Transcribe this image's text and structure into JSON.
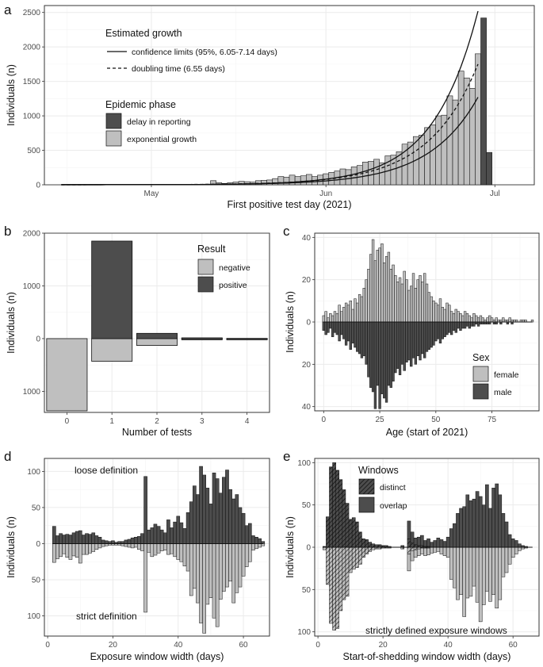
{
  "colors": {
    "dark": "#4d4d4d",
    "light": "#bfbfbf",
    "grid": "#ebebeb"
  },
  "chart_data": [
    {
      "panel": "a",
      "type": "bar",
      "xlabel": "First positive test day (2021)",
      "ylabel": "Individuals (n)",
      "x_ticks": [
        "May",
        "Jun",
        "Jul"
      ],
      "y_ticks": [
        "0",
        "500",
        "1000",
        "1500",
        "2000",
        "2500"
      ],
      "ylim": [
        0,
        2600
      ],
      "x_unit": "day index (0 = Apr 15)",
      "xlim": [
        -3,
        84
      ],
      "x_tick_days": [
        16,
        47,
        77
      ],
      "legend_growth_title": "Estimated growth",
      "legend_growth": [
        {
          "label": "confidence limits (95%, 6.05-7.14 days)",
          "style": "solid"
        },
        {
          "label": "doubling time (6.55 days)",
          "style": "dashed"
        }
      ],
      "legend_phase_title": "Epidemic phase",
      "legend_phase": [
        {
          "label": "delay in reporting",
          "color": "dark"
        },
        {
          "label": "exponential growth",
          "color": "light"
        }
      ],
      "exponential_growth_start_day": 27,
      "exponential_growth": [
        60,
        30,
        20,
        30,
        40,
        50,
        45,
        40,
        60,
        65,
        70,
        90,
        120,
        110,
        140,
        120,
        130,
        150,
        120,
        140,
        160,
        180,
        200,
        230,
        220,
        260,
        280,
        330,
        340,
        370,
        320,
        420,
        430,
        480,
        590,
        620,
        700,
        720,
        830,
        870,
        1000,
        1010,
        1290,
        1230,
        1650,
        1550,
        1400,
        1900
      ],
      "delay_in_reporting_start_day": 75,
      "delay_in_reporting": [
        2420,
        470
      ],
      "curve_end_values": {
        "upper": 2520,
        "mid": 1750,
        "lower": 1270
      }
    },
    {
      "panel": "b",
      "type": "bar",
      "xlabel": "Number of tests",
      "ylabel": "Individuals (n)",
      "categories": [
        "0",
        "1",
        "2",
        "3",
        "4"
      ],
      "y_ticks_pos": [
        "1000",
        "2000"
      ],
      "y_ticks_neg": [
        "0",
        "1000"
      ],
      "ylim": [
        -1400,
        2000
      ],
      "legend_title": "Result",
      "series": [
        {
          "name": "negative",
          "color": "light",
          "values": [
            1370,
            430,
            130,
            10,
            5
          ]
        },
        {
          "name": "positive",
          "color": "dark",
          "values": [
            0,
            1850,
            100,
            15,
            5
          ]
        }
      ]
    },
    {
      "panel": "c",
      "type": "bar",
      "xlabel": "Age (start of 2021)",
      "ylabel": "Individuals (n)",
      "x_ticks": [
        "0",
        "25",
        "50",
        "75"
      ],
      "y_ticks_pos": [
        "0",
        "20",
        "40"
      ],
      "y_ticks_neg": [
        "20",
        "40"
      ],
      "ylim": [
        -42,
        42
      ],
      "legend_title": "Sex",
      "female": [
        3,
        5,
        2,
        4,
        3,
        5,
        4,
        8,
        5,
        7,
        9,
        8,
        10,
        6,
        11,
        9,
        13,
        12,
        16,
        20,
        25,
        32,
        39,
        29,
        34,
        35,
        37,
        28,
        31,
        33,
        25,
        27,
        22,
        19,
        21,
        18,
        24,
        20,
        15,
        17,
        23,
        16,
        20,
        22,
        19,
        23,
        18,
        14,
        12,
        10,
        9,
        8,
        11,
        7,
        6,
        9,
        8,
        5,
        4,
        6,
        5,
        4,
        3,
        5,
        4,
        3,
        2,
        4,
        3,
        2,
        3,
        2,
        1,
        2,
        3,
        2,
        1,
        2,
        1,
        1,
        2,
        1,
        1,
        2,
        1,
        1,
        1,
        0,
        1,
        1,
        1,
        0,
        0,
        1
      ],
      "male": [
        4,
        6,
        5,
        3,
        7,
        5,
        6,
        9,
        6,
        8,
        11,
        9,
        13,
        10,
        12,
        14,
        15,
        17,
        16,
        20,
        26,
        31,
        33,
        41,
        30,
        41,
        34,
        36,
        38,
        30,
        31,
        28,
        24,
        22,
        25,
        20,
        23,
        19,
        18,
        21,
        17,
        20,
        16,
        18,
        15,
        17,
        14,
        13,
        12,
        11,
        9,
        8,
        10,
        8,
        7,
        6,
        5,
        6,
        4,
        5,
        3,
        4,
        3,
        3,
        2,
        3,
        2,
        2,
        1,
        2,
        1,
        1,
        1,
        1,
        1,
        0,
        1,
        1,
        0,
        1,
        0,
        0,
        1,
        0,
        1,
        0,
        0,
        0,
        0,
        0,
        0,
        0,
        0,
        0
      ]
    },
    {
      "panel": "d",
      "type": "bar",
      "xlabel": "Exposure window width (days)",
      "ylabel": "Individuals (n)",
      "x_ticks": [
        "0",
        "20",
        "40",
        "60"
      ],
      "y_ticks_pos": [
        "0",
        "50",
        "100"
      ],
      "y_ticks_neg": [
        "50",
        "100"
      ],
      "ylim": [
        -128,
        118
      ],
      "annotation_top": "loose definition",
      "annotation_bottom": "strict definition",
      "loose": [
        24,
        11,
        14,
        12,
        13,
        12,
        15,
        17,
        18,
        12,
        14,
        13,
        15,
        11,
        9,
        5,
        4,
        3,
        4,
        2,
        3,
        3,
        5,
        6,
        8,
        9,
        10,
        14,
        93,
        19,
        22,
        27,
        24,
        19,
        15,
        33,
        22,
        30,
        38,
        29,
        21,
        43,
        58,
        80,
        68,
        107,
        95,
        77,
        55,
        98,
        90,
        70,
        92,
        102,
        75,
        62,
        68,
        50,
        42,
        25,
        28,
        11,
        9,
        7,
        3
      ],
      "strict": [
        26,
        21,
        18,
        14,
        19,
        22,
        17,
        19,
        27,
        15,
        15,
        13,
        11,
        8,
        6,
        4,
        3,
        2,
        2,
        2,
        2,
        3,
        4,
        5,
        6,
        5,
        8,
        10,
        95,
        12,
        18,
        16,
        13,
        10,
        9,
        15,
        14,
        18,
        22,
        25,
        31,
        38,
        72,
        62,
        82,
        110,
        124,
        84,
        75,
        103,
        115,
        77,
        66,
        60,
        52,
        82,
        68,
        60,
        45,
        32,
        25,
        9,
        7,
        5,
        3
      ]
    },
    {
      "panel": "e",
      "type": "bar",
      "xlabel": "Start-of-shedding window width (days)",
      "ylabel": "Individuals (n)",
      "x_ticks": [
        "0",
        "20",
        "40",
        "60"
      ],
      "y_ticks_pos": [
        "0",
        "50",
        "100"
      ],
      "y_ticks_neg": [
        "50",
        "100"
      ],
      "ylim": [
        -105,
        105
      ],
      "legend_title": "Windows",
      "legend": [
        {
          "label": "distinct",
          "pattern": "hatched"
        },
        {
          "label": "overlap",
          "pattern": "solid"
        }
      ],
      "annotation": "strictly defined exposure windows",
      "upper_total": [
        0,
        0,
        1,
        36,
        95,
        100,
        91,
        80,
        68,
        52,
        33,
        35,
        30,
        18,
        10,
        9,
        6,
        4,
        3,
        3,
        2,
        2,
        1,
        0,
        0,
        0,
        2,
        0,
        31,
        18,
        11,
        12,
        14,
        8,
        10,
        6,
        8,
        11,
        9,
        7,
        12,
        22,
        28,
        40,
        46,
        48,
        62,
        55,
        57,
        66,
        60,
        50,
        74,
        46,
        70,
        75,
        62,
        40,
        30,
        15,
        10,
        8,
        4,
        2,
        1
      ],
      "upper_distinct": [
        0,
        0,
        1,
        36,
        95,
        100,
        91,
        80,
        68,
        52,
        33,
        35,
        30,
        18,
        10,
        9,
        6,
        4,
        3,
        3,
        2,
        2,
        1,
        0,
        0,
        0,
        2,
        0,
        10,
        5,
        3,
        2,
        2,
        1,
        1,
        0,
        0,
        0,
        0,
        0,
        0,
        0,
        0,
        0,
        0,
        0,
        0,
        0,
        0,
        0,
        0,
        0,
        0,
        0,
        0,
        0,
        0,
        0,
        0,
        0,
        0,
        0,
        0,
        0,
        0
      ],
      "lower_total": [
        0,
        0,
        3,
        44,
        90,
        98,
        96,
        75,
        62,
        58,
        30,
        26,
        24,
        20,
        12,
        8,
        5,
        3,
        2,
        2,
        1,
        1,
        1,
        0,
        0,
        0,
        2,
        0,
        28,
        16,
        12,
        10,
        8,
        10,
        9,
        7,
        6,
        5,
        8,
        10,
        12,
        38,
        48,
        62,
        56,
        82,
        60,
        58,
        46,
        65,
        88,
        68,
        52,
        64,
        56,
        72,
        62,
        35,
        30,
        20,
        12,
        8,
        4,
        2,
        1
      ],
      "lower_distinct": [
        0,
        0,
        3,
        44,
        90,
        98,
        96,
        75,
        62,
        58,
        30,
        26,
        24,
        20,
        12,
        8,
        5,
        3,
        2,
        2,
        1,
        1,
        1,
        0,
        0,
        0,
        2,
        0,
        8,
        4,
        3,
        2,
        1,
        1,
        1,
        0,
        0,
        0,
        0,
        0,
        0,
        0,
        0,
        0,
        0,
        0,
        0,
        0,
        0,
        0,
        0,
        0,
        0,
        0,
        0,
        0,
        0,
        0,
        0,
        0,
        0,
        0,
        0,
        0,
        0
      ]
    }
  ]
}
